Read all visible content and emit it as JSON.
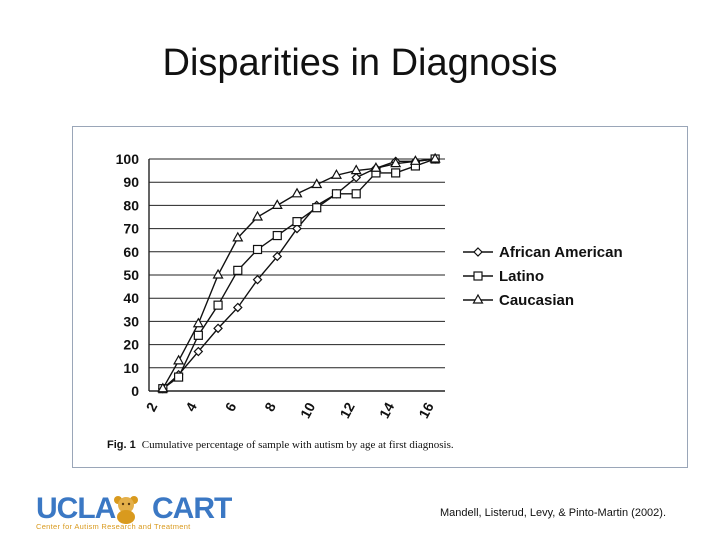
{
  "slide": {
    "title": "Disparities in Diagnosis",
    "citation": "Mandell, Listerud, Levy, & Pinto-Martin (2002)."
  },
  "figure": {
    "caption_label": "Fig. 1",
    "caption_text": "Cumulative percentage of sample with autism by age at first diagnosis."
  },
  "logo": {
    "left": "UCLA",
    "right": "CART",
    "subtitle": "Center for Autism Research and Treatment"
  },
  "chart_data": {
    "type": "line",
    "x_ticks": [
      2,
      4,
      6,
      8,
      10,
      12,
      14,
      16
    ],
    "y_ticks": [
      0,
      10,
      20,
      30,
      40,
      50,
      60,
      70,
      80,
      90,
      100
    ],
    "xlim": [
      2,
      17
    ],
    "ylim": [
      0,
      100
    ],
    "grid": true,
    "legend_position": "right",
    "series": [
      {
        "name": "African American",
        "marker": "diamond",
        "x": [
          2.7,
          3.5,
          4.5,
          5.5,
          6.5,
          7.5,
          8.5,
          9.5,
          10.5,
          11.5,
          12.5,
          13.5,
          14.5,
          15.5,
          16.5
        ],
        "values": [
          1,
          7,
          17,
          27,
          36,
          48,
          58,
          70,
          80,
          85,
          92,
          96,
          99,
          99,
          100
        ]
      },
      {
        "name": "Latino",
        "marker": "square",
        "x": [
          2.7,
          3.5,
          4.5,
          5.5,
          6.5,
          7.5,
          8.5,
          9.5,
          10.5,
          11.5,
          12.5,
          13.5,
          14.5,
          15.5,
          16.5
        ],
        "values": [
          1,
          6,
          24,
          37,
          52,
          61,
          67,
          73,
          79,
          85,
          85,
          94,
          94,
          97,
          100
        ]
      },
      {
        "name": "Caucasian",
        "marker": "triangle",
        "x": [
          2.7,
          3.5,
          4.5,
          5.5,
          6.5,
          7.5,
          8.5,
          9.5,
          10.5,
          11.5,
          12.5,
          13.5,
          14.5,
          15.5,
          16.5
        ],
        "values": [
          1,
          13,
          29,
          50,
          66,
          75,
          80,
          85,
          89,
          93,
          95,
          96,
          98,
          99,
          100
        ]
      }
    ]
  }
}
